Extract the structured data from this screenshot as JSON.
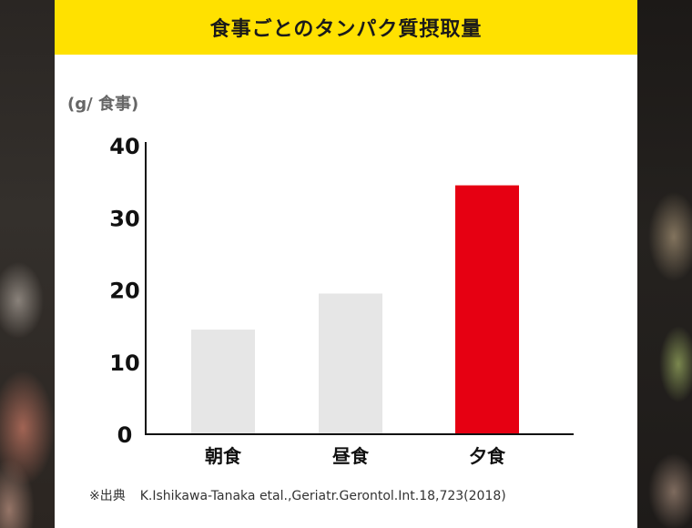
{
  "chart_data": {
    "type": "bar",
    "title": "食事ごとのタンパク質摂取量",
    "ylabel": "(g/ 食事)",
    "categories": [
      "朝食",
      "昼食",
      "夕食"
    ],
    "values": [
      14.5,
      19.5,
      34.5
    ],
    "ylim": [
      0,
      40
    ],
    "yticks": [
      0,
      10,
      20,
      30,
      40
    ],
    "bar_colors": [
      "#e6e6e6",
      "#e6e6e6",
      "#e60012"
    ],
    "grid": false,
    "legend": "none"
  },
  "source": {
    "label": "※出典",
    "citation": "K.Ishikawa-Tanaka etal.,Geriatr.Gerontol.Int.18,723(2018)"
  },
  "colors": {
    "title_bar": "#ffe100",
    "highlight": "#e60012",
    "bar_default": "#e6e6e6"
  }
}
